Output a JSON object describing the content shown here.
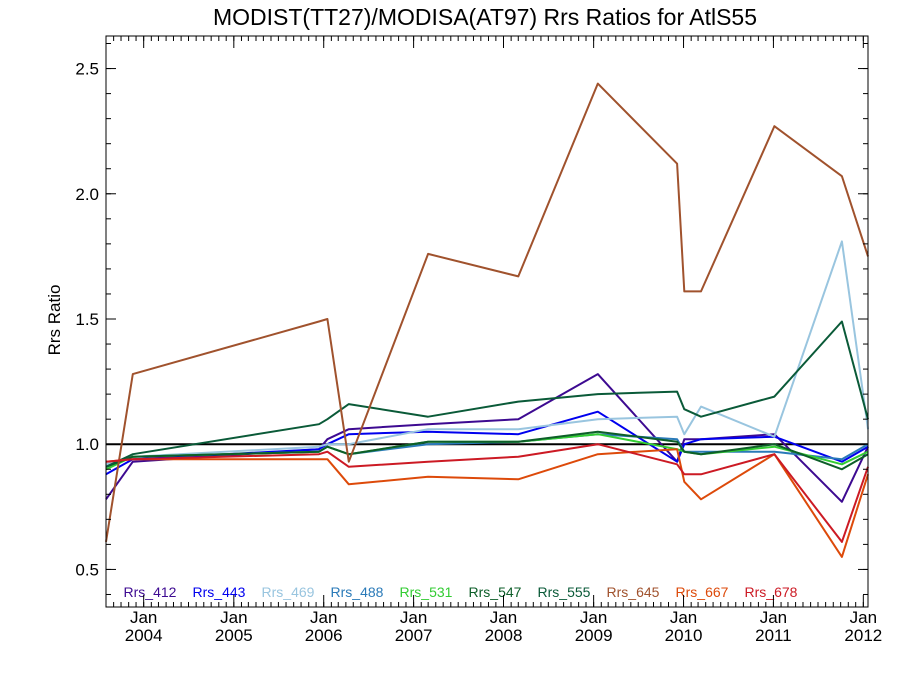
{
  "chart_data": {
    "type": "line",
    "title": "MODIST(TT27)/MODISA(AT97)  Rrs Ratios for AtlS55",
    "xlabel": "",
    "ylabel": "Rrs Ratio",
    "xlim": [
      "2003-08-01",
      "2012-01-20"
    ],
    "ylim": [
      0.35,
      2.63
    ],
    "grid": false,
    "legend": "bottom",
    "y_ticks": [
      0.5,
      1.0,
      1.5,
      2.0,
      2.5
    ],
    "y_tick_labels": [
      "0.5",
      "1.0",
      "1.5",
      "2.0",
      "2.5"
    ],
    "x_ticks": [
      {
        "date": "2004-01-01",
        "month": "Jan",
        "year": "2004"
      },
      {
        "date": "2005-01-01",
        "month": "Jan",
        "year": "2005"
      },
      {
        "date": "2006-01-01",
        "month": "Jan",
        "year": "2006"
      },
      {
        "date": "2007-01-01",
        "month": "Jan",
        "year": "2007"
      },
      {
        "date": "2008-01-01",
        "month": "Jan",
        "year": "2008"
      },
      {
        "date": "2009-01-01",
        "month": "Jan",
        "year": "2009"
      },
      {
        "date": "2010-01-01",
        "month": "Jan",
        "year": "2010"
      },
      {
        "date": "2011-01-01",
        "month": "Jan",
        "year": "2011"
      },
      {
        "date": "2012-01-01",
        "month": "Jan",
        "year": "2012"
      }
    ],
    "reference_line": {
      "y": 1.0,
      "color": "#000000"
    },
    "x": [
      "2003-08-01",
      "2003-11-18",
      "2005-12-13",
      "2006-01-16",
      "2006-04-13",
      "2007-03-01",
      "2008-03-01",
      "2009-01-18",
      "2009-12-06",
      "2010-01-04",
      "2010-03-13",
      "2011-01-05",
      "2011-10-06",
      "2012-01-20"
    ],
    "series": [
      {
        "name": "Rrs_412",
        "color": "#3d0a91",
        "values": [
          0.78,
          0.93,
          0.98,
          1.02,
          1.06,
          1.08,
          1.1,
          1.28,
          0.93,
          1.02,
          1.02,
          1.04,
          0.77,
          0.99
        ]
      },
      {
        "name": "Rrs_443",
        "color": "#0000ee",
        "values": [
          0.88,
          0.94,
          0.98,
          1.0,
          1.04,
          1.05,
          1.04,
          1.13,
          0.93,
          1.0,
          1.02,
          1.03,
          0.93,
          0.99
        ]
      },
      {
        "name": "Rrs_469",
        "color": "#99c5df",
        "values": [
          0.92,
          0.95,
          0.99,
          1.0,
          1.0,
          1.06,
          1.06,
          1.1,
          1.11,
          1.04,
          1.15,
          1.03,
          1.81,
          1.06
        ]
      },
      {
        "name": "Rrs_488",
        "color": "#2a7ab8",
        "values": [
          0.91,
          0.95,
          0.97,
          0.99,
          0.96,
          1.0,
          1.01,
          1.04,
          1.02,
          0.97,
          0.97,
          0.97,
          0.94,
          1.0
        ]
      },
      {
        "name": "Rrs_531",
        "color": "#33cc33",
        "values": [
          0.9,
          0.95,
          0.97,
          0.99,
          0.96,
          1.01,
          1.01,
          1.04,
          0.98,
          0.97,
          0.96,
          0.99,
          0.92,
          0.97
        ]
      },
      {
        "name": "Rrs_547",
        "color": "#0d5e29",
        "values": [
          0.91,
          0.95,
          0.97,
          0.99,
          0.96,
          1.01,
          1.01,
          1.05,
          1.01,
          0.97,
          0.96,
          1.0,
          0.9,
          0.96
        ]
      },
      {
        "name": "Rrs_555",
        "color": "#0a5a38",
        "values": [
          0.91,
          0.96,
          1.08,
          1.1,
          1.16,
          1.11,
          1.17,
          1.2,
          1.21,
          1.14,
          1.11,
          1.19,
          1.49,
          1.1
        ]
      },
      {
        "name": "Rrs_645",
        "color": "#a0522d",
        "values": [
          0.61,
          1.28,
          1.49,
          1.5,
          0.93,
          1.76,
          1.67,
          2.44,
          2.12,
          1.61,
          1.61,
          2.27,
          2.07,
          1.75
        ]
      },
      {
        "name": "Rrs_667",
        "color": "#dd4a0a",
        "values": [
          0.93,
          0.94,
          0.94,
          0.94,
          0.84,
          0.87,
          0.86,
          0.96,
          0.98,
          0.85,
          0.78,
          0.96,
          0.55,
          0.88
        ]
      },
      {
        "name": "Rrs_678",
        "color": "#cc1a24",
        "values": [
          0.93,
          0.94,
          0.96,
          0.97,
          0.91,
          0.93,
          0.95,
          1.0,
          0.92,
          0.88,
          0.88,
          0.96,
          0.61,
          0.91
        ]
      }
    ]
  }
}
